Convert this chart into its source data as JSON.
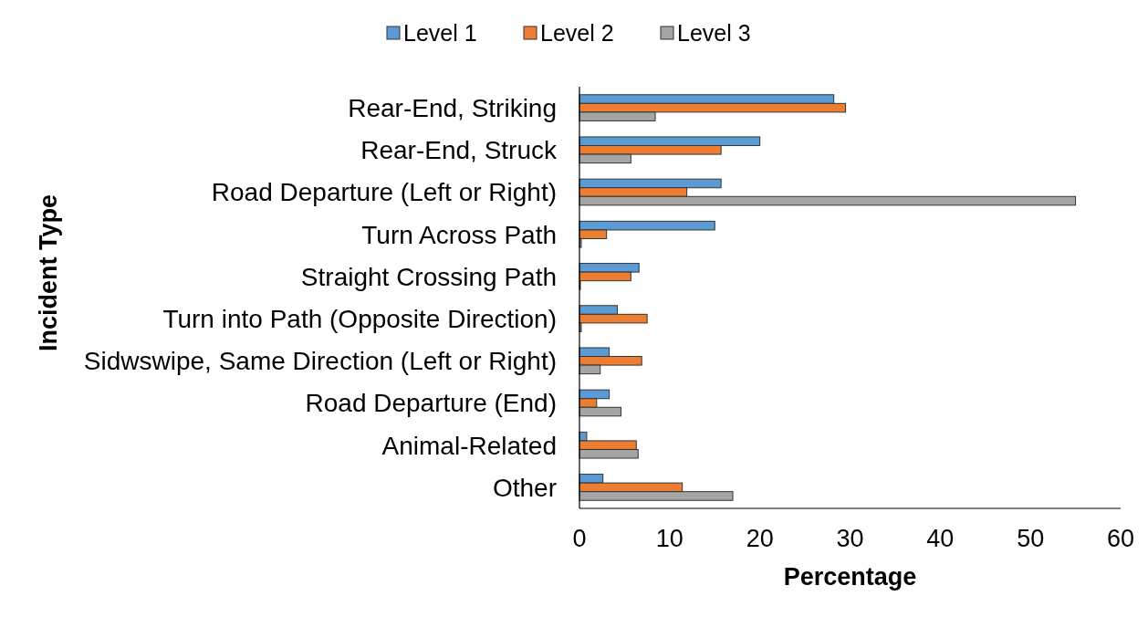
{
  "chart_data": {
    "type": "bar",
    "orientation": "horizontal",
    "xlabel": "Percentage",
    "ylabel": "Incident Type",
    "categories": [
      "Rear-End, Striking",
      "Rear-End, Struck",
      "Road Departure (Left or Right)",
      "Turn Across Path",
      "Straight Crossing Path",
      "Turn into Path (Opposite Direction)",
      "Sidwswipe, Same Direction (Left or Right)",
      "Road Departure (End)",
      "Animal-Related",
      "Other"
    ],
    "series": [
      {
        "name": "Level 1",
        "color": "#5b9bd5",
        "values": [
          28.2,
          20.0,
          15.7,
          15.0,
          6.6,
          4.2,
          3.3,
          3.3,
          0.8,
          2.6
        ]
      },
      {
        "name": "Level 2",
        "color": "#ed7d31",
        "values": [
          29.5,
          15.7,
          11.9,
          3.0,
          5.7,
          7.5,
          6.9,
          1.9,
          6.3,
          11.4
        ]
      },
      {
        "name": "Level 3",
        "color": "#a5a5a5",
        "values": [
          8.4,
          5.7,
          55.0,
          0.2,
          0.1,
          0.2,
          2.3,
          4.6,
          6.5,
          17.0
        ]
      }
    ],
    "xlim": [
      0,
      60
    ],
    "xticks": [
      0,
      10,
      20,
      30,
      40,
      50,
      60
    ],
    "grid": false,
    "legend": "top"
  }
}
